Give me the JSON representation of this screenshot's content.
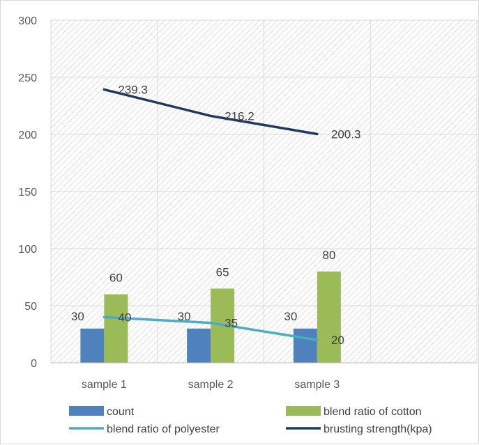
{
  "chart_data": {
    "type": "bar",
    "categories": [
      "sample 1",
      "sample 2",
      "sample 3"
    ],
    "ylim": [
      0,
      300
    ],
    "y_ticks": [
      0,
      50,
      100,
      150,
      200,
      250,
      300
    ],
    "grid": "hatched plot area with vertical and horizontal gridlines",
    "legend_position": "bottom",
    "series": [
      {
        "name": "count",
        "kind": "bar",
        "color": "#4f81bd",
        "values": [
          30,
          30,
          30
        ]
      },
      {
        "name": "blend ratio of cotton",
        "kind": "bar",
        "color": "#9bbb59",
        "values": [
          60,
          65,
          80
        ]
      },
      {
        "name": "blend ratio  of polyester",
        "kind": "line",
        "color": "#4bacc6",
        "values": [
          40,
          35,
          20
        ]
      },
      {
        "name": "brusting strength(kpa)",
        "kind": "line",
        "color": "#1f3864",
        "values": [
          239.3,
          216.2,
          200.3
        ]
      }
    ],
    "data_labels": {
      "count": [
        "30",
        "30",
        "30"
      ],
      "blend ratio of cotton": [
        "60",
        "65",
        "80"
      ],
      "blend ratio  of polyester": [
        "40",
        "35",
        "20"
      ],
      "brusting strength(kpa)": [
        "239.3",
        "216.2",
        "200.3"
      ]
    }
  }
}
